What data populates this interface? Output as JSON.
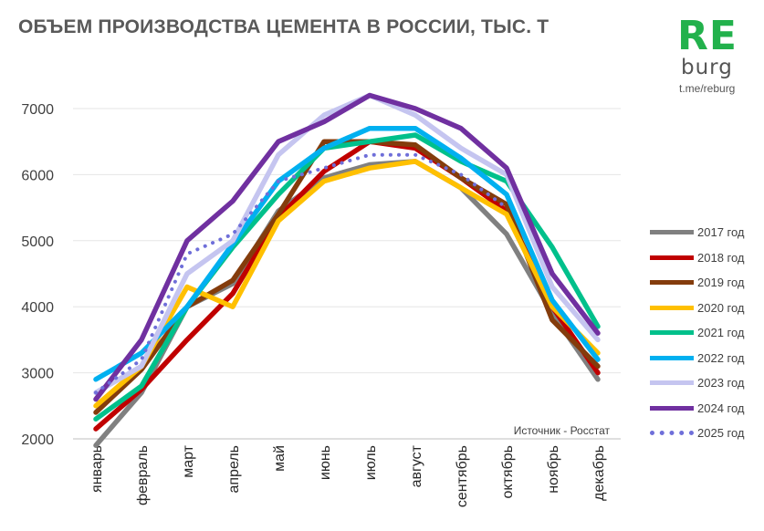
{
  "header": {
    "title": "ОБЪЕМ ПРОИЗВОДСТВА ЦЕМЕНТА В РОССИИ, ТЫС. Т"
  },
  "logo": {
    "text_re": "RE",
    "text_burg": "burg",
    "link": "t.me/reburg"
  },
  "chart_data": {
    "type": "line",
    "title": "ОБЪЕМ ПРОИЗВОДСТВА ЦЕМЕНТА В РОССИИ, ТЫС. Т",
    "source_note": "Источник - Росстат",
    "categories": [
      "январь",
      "февраль",
      "март",
      "апрель",
      "май",
      "июнь",
      "июль",
      "август",
      "сентябрь",
      "октябрь",
      "ноябрь",
      "декабрь"
    ],
    "ylim": [
      2000,
      7000
    ],
    "yticks": [
      2000,
      3000,
      4000,
      5000,
      6000,
      7000
    ],
    "grid": true,
    "legend_position": "right",
    "series": [
      {
        "name": "2017 год",
        "color": "#808080",
        "dashed": false,
        "values": [
          1900,
          2700,
          4000,
          4350,
          5450,
          5950,
          6150,
          6200,
          5800,
          5100,
          3900,
          2900
        ]
      },
      {
        "name": "2018 год",
        "color": "#c00000",
        "dashed": false,
        "values": [
          2150,
          2750,
          3500,
          4200,
          5350,
          6050,
          6500,
          6400,
          5950,
          5450,
          4000,
          3000
        ]
      },
      {
        "name": "2019 год",
        "color": "#843c0c",
        "dashed": false,
        "values": [
          2400,
          3050,
          4000,
          4400,
          5400,
          6500,
          6500,
          6450,
          5950,
          5550,
          3800,
          3100
        ]
      },
      {
        "name": "2020 год",
        "color": "#ffc000",
        "dashed": false,
        "values": [
          2500,
          3100,
          4300,
          4000,
          5300,
          5900,
          6100,
          6200,
          5800,
          5400,
          4000,
          3300
        ]
      },
      {
        "name": "2021 год",
        "color": "#00c08b",
        "dashed": false,
        "values": [
          2300,
          2800,
          4000,
          4900,
          5700,
          6400,
          6500,
          6600,
          6200,
          5900,
          4900,
          3700
        ]
      },
      {
        "name": "2022 год",
        "color": "#00b0f0",
        "dashed": false,
        "values": [
          2900,
          3300,
          4000,
          4950,
          5900,
          6400,
          6700,
          6700,
          6250,
          5700,
          4100,
          3200
        ]
      },
      {
        "name": "2023 год",
        "color": "#c5c5f0",
        "dashed": false,
        "values": [
          2700,
          3100,
          4500,
          5000,
          6300,
          6900,
          7200,
          6900,
          6400,
          6000,
          4300,
          3500
        ]
      },
      {
        "name": "2024 год",
        "color": "#7030a0",
        "dashed": false,
        "values": [
          2600,
          3500,
          5000,
          5600,
          6500,
          6800,
          7200,
          7000,
          6700,
          6100,
          4500,
          3600
        ]
      },
      {
        "name": "2025 год",
        "color": "#6f6fd9",
        "dashed": true,
        "values": [
          2700,
          3200,
          4800,
          5100,
          5900,
          6100,
          6300,
          6300,
          6000,
          5500,
          null,
          null
        ]
      }
    ]
  }
}
